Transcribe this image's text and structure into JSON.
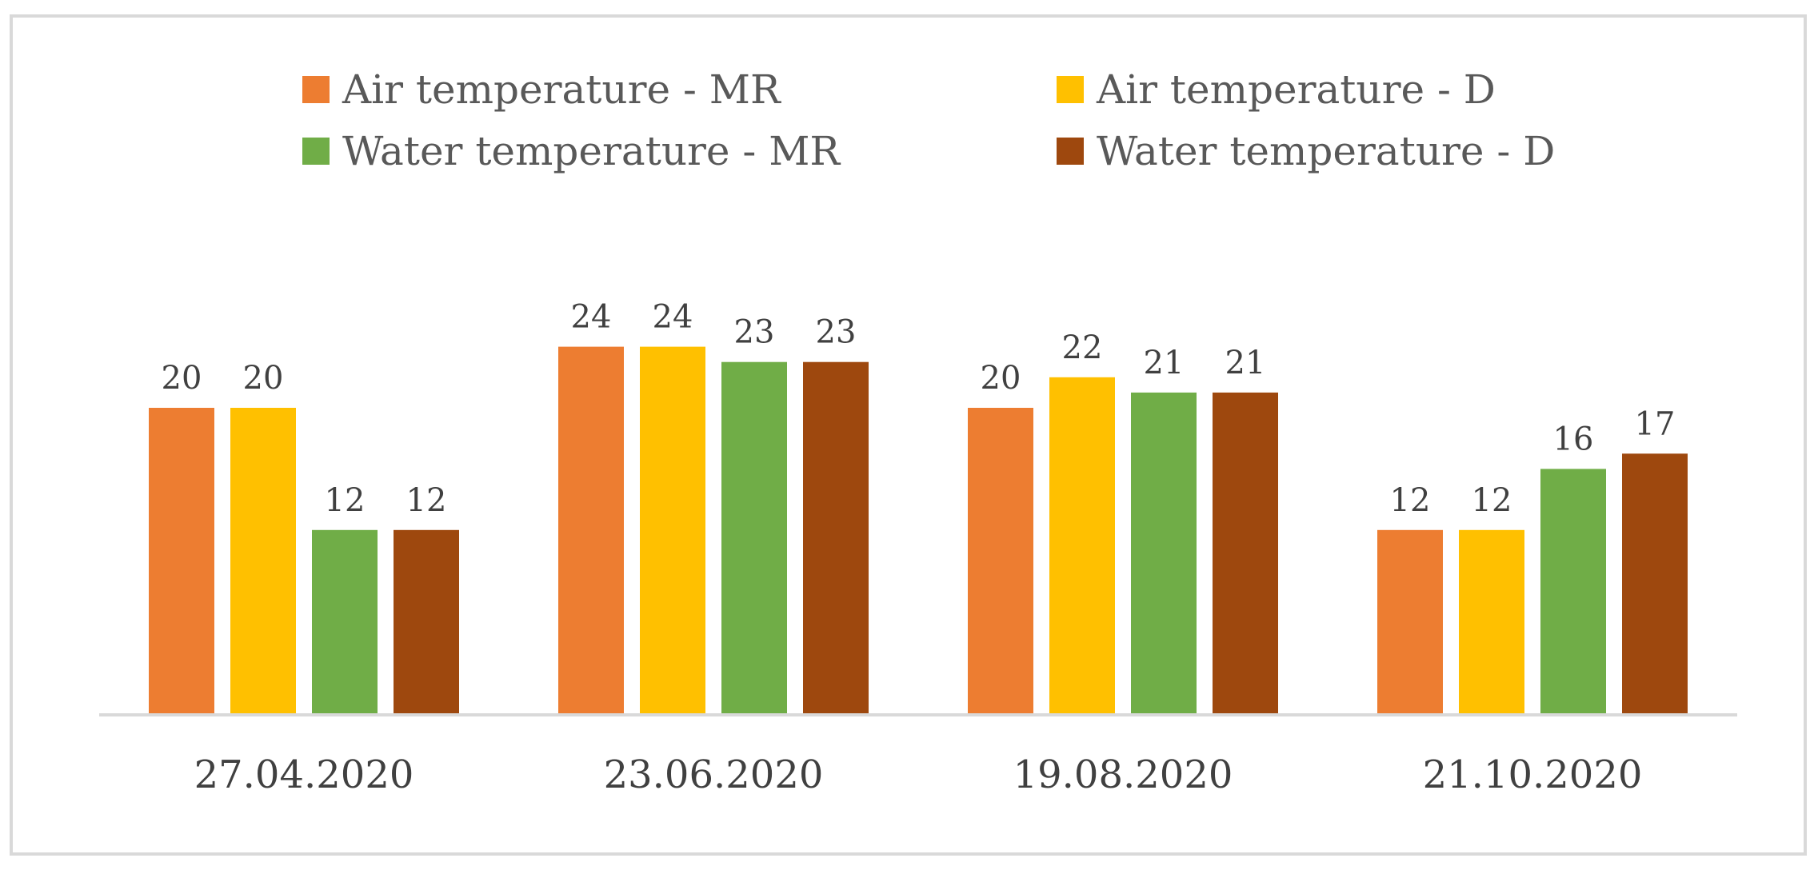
{
  "chart_data": {
    "type": "bar",
    "title": "",
    "xlabel": "",
    "ylabel": "",
    "ylim": [
      0,
      30
    ],
    "grid": false,
    "legend_position": "top",
    "data_labels": true,
    "categories": [
      "27.04.2020",
      "23.06.2020",
      "19.08.2020",
      "21.10.2020"
    ],
    "series": [
      {
        "name": "Air temperature - MR",
        "color": "#ED7D31",
        "values": [
          20,
          24,
          20,
          12
        ]
      },
      {
        "name": "Air temperature - D",
        "color": "#FFC000",
        "values": [
          20,
          24,
          22,
          12
        ]
      },
      {
        "name": "Water temperature - MR",
        "color": "#70AD47",
        "values": [
          12,
          23,
          21,
          16
        ]
      },
      {
        "name": "Water temperature - D",
        "color": "#9E480E",
        "values": [
          12,
          23,
          21,
          17
        ]
      }
    ]
  },
  "colors": {
    "axis": "#d9d9d9",
    "frame": "#d9d9d9",
    "text": "#404040",
    "legend_text": "#595959"
  }
}
